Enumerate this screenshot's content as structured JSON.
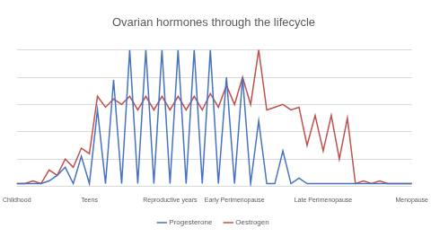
{
  "chart_data": {
    "type": "line",
    "title": "Ovarian hormones through the lifecycle",
    "categories": [
      "Childhood",
      null,
      null,
      null,
      null,
      null,
      null,
      null,
      null,
      "Teens",
      null,
      null,
      null,
      null,
      null,
      null,
      null,
      null,
      null,
      "Reproductive years",
      null,
      null,
      null,
      null,
      null,
      null,
      null,
      "Early Perimenopause",
      null,
      null,
      null,
      null,
      null,
      null,
      null,
      null,
      null,
      null,
      "Late Perimenopause",
      null,
      null,
      null,
      null,
      null,
      null,
      null,
      null,
      null,
      null,
      "Menopause"
    ],
    "series": [
      {
        "name": "Progesterone",
        "color": "#4472c4",
        "values": [
          0.1,
          0.1,
          0.1,
          0.1,
          0.2,
          0.4,
          0.7,
          0.1,
          1.1,
          0.1,
          2.8,
          0.1,
          3.9,
          0.1,
          5,
          0.1,
          5,
          0.1,
          5,
          0.1,
          5,
          0.1,
          5,
          0.1,
          5,
          0.1,
          4,
          0.1,
          4,
          0.1,
          2.4,
          0.1,
          0.1,
          1.3,
          0.1,
          0.3,
          0.1,
          0.1,
          0.1,
          0.1,
          0.1,
          0.1,
          0.1,
          0.1,
          0.1,
          0.1,
          0.1,
          0.1,
          0.1,
          0.1
        ]
      },
      {
        "name": "Oestrogen",
        "color": "#c0504d",
        "values": [
          0.1,
          0.1,
          0.2,
          0.1,
          0.6,
          0.4,
          1.0,
          0.7,
          1.4,
          1.2,
          3.3,
          2.9,
          3.2,
          3.0,
          3.3,
          2.8,
          3.3,
          2.8,
          3.3,
          2.8,
          3.3,
          2.8,
          3.3,
          2.8,
          3.4,
          2.9,
          3.7,
          3.0,
          4.0,
          3.0,
          5.0,
          2.8,
          2.9,
          3.0,
          2.8,
          2.9,
          1.5,
          2.6,
          1.3,
          2.6,
          1.0,
          2.5,
          0.1,
          0.2,
          0.1,
          0.2,
          0.1,
          0.1,
          0.1,
          0.1
        ]
      }
    ],
    "ylim": [
      0,
      5
    ],
    "yticks": [
      0,
      1,
      2,
      3,
      4,
      5
    ],
    "grid": true,
    "legend": "bottom",
    "tick_labels": "x"
  }
}
